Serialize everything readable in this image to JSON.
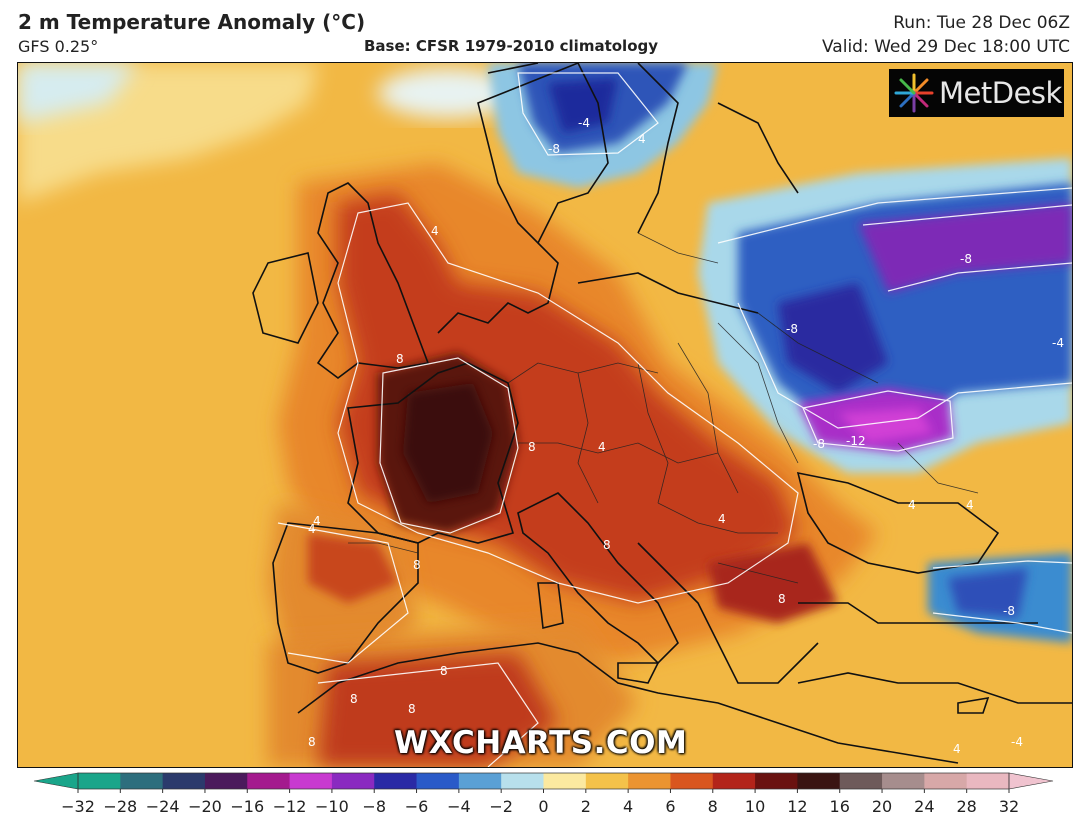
{
  "header": {
    "title": "2 m Temperature Anomaly (°C)",
    "model": "GFS 0.25°",
    "base": "Base: CFSR 1979-2010 climatology",
    "run": "Run: Tue 28 Dec 06Z",
    "valid": "Valid: Wed 29 Dec 18:00 UTC"
  },
  "logo": {
    "text": "MetDesk",
    "icon": "metdesk-starburst-icon"
  },
  "watermark": "WXCHARTS.COM",
  "colors": {
    "ocean_warm": "#f2b844",
    "warm_orange": "#e9862b",
    "hot_red": "#c5391b",
    "very_hot": "#6a1610",
    "cold_blue": "#2950b7",
    "very_cold": "#9b25c2",
    "cool_light": "#bfe3ee"
  },
  "contour_labels": [
    "4",
    "8",
    "4",
    "4",
    "8",
    "8",
    "4",
    "-4",
    "-8",
    "-8",
    "-8",
    "-12",
    "-4",
    "-8",
    "4",
    "8",
    "8",
    "4",
    "4",
    "8",
    "8",
    "8",
    "4",
    "4",
    "-8",
    "4",
    "8",
    "-4"
  ],
  "colorbar": {
    "ticks": [
      "−32",
      "−28",
      "−24",
      "−20",
      "−16",
      "−12",
      "−10",
      "−8",
      "−6",
      "−4",
      "−2",
      "0",
      "2",
      "4",
      "6",
      "8",
      "10",
      "12",
      "16",
      "20",
      "24",
      "28",
      "32"
    ],
    "colors": [
      "#1aa58a",
      "#2d6e7d",
      "#2b3a6c",
      "#4b1a5c",
      "#a41a8e",
      "#c83ad0",
      "#8a2ac0",
      "#2a2aa5",
      "#2a5ac8",
      "#5aa0d5",
      "#b8e0ec",
      "#fbe9a0",
      "#f4c24a",
      "#eb9431",
      "#d9561f",
      "#b3241a",
      "#6a1210",
      "#3a1412",
      "#6e5a5a",
      "#a68d8d",
      "#d7a8a8",
      "#e9b8c0"
    ]
  }
}
